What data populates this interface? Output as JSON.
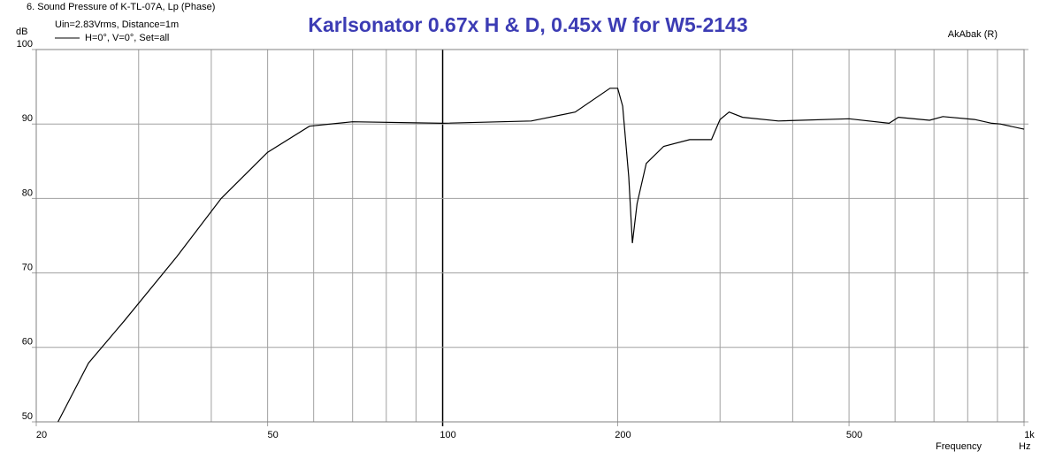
{
  "chart_data": {
    "type": "line",
    "header": "6. Sound Pressure of K-TL-07A, Lp (Phase)",
    "title": "Karlsonator 0.67x H & D, 0.45x W for W5-2143",
    "subtitle": "Uin=2.83Vrms, Distance=1m",
    "credit": "AkAbak (R)",
    "y_label": "dB",
    "x_label": "Frequency",
    "x_unit": "Hz",
    "x_scale": "log",
    "grid": true,
    "xlim": [
      20,
      1000
    ],
    "ylim": [
      50,
      100
    ],
    "xticks": [
      20,
      50,
      100,
      200,
      500,
      {
        "value": 1000,
        "label": "1k"
      }
    ],
    "minor_xticks": [
      30,
      40,
      60,
      70,
      80,
      90,
      300,
      400,
      600,
      700,
      800,
      900
    ],
    "yticks": [
      50,
      60,
      70,
      80,
      90,
      100
    ],
    "series": [
      {
        "name": "H=0°, V=0°, Set=all",
        "color": "#000000",
        "x": [
          21.8,
          24.6,
          28.3,
          34.9,
          41.6,
          50,
          59,
          70,
          100,
          142,
          169,
          194,
          200,
          204,
          209,
          212,
          216,
          224,
          240,
          266,
          290,
          300,
          311,
          328,
          378,
          500,
          586,
          608,
          688,
          725,
          822,
          880,
          910,
          1000
        ],
        "values": [
          50,
          57.9,
          63.5,
          72.2,
          80,
          86.2,
          89.7,
          90.3,
          90.1,
          90.4,
          91.6,
          94.8,
          94.8,
          92.4,
          82.9,
          74,
          79.3,
          84.7,
          87,
          87.9,
          87.9,
          90.6,
          91.6,
          90.9,
          90.4,
          90.7,
          90.1,
          90.9,
          90.5,
          91,
          90.6,
          90.1,
          90,
          89.3
        ]
      }
    ]
  }
}
